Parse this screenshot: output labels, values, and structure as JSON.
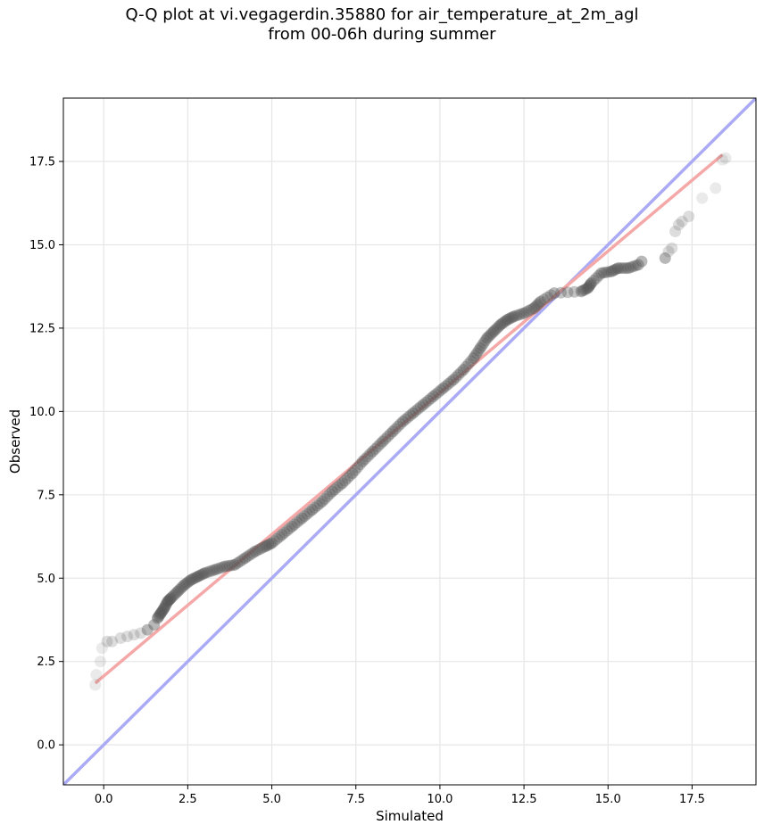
{
  "chart_data": {
    "type": "scatter",
    "title_line1": "Q-Q plot at vi.vegagerdin.35880 for air_temperature_at_2m_agl",
    "title_line2": "from 00-06h during summer",
    "xlabel": "Simulated",
    "ylabel": "Observed",
    "xlim": [
      -1.2,
      19.4
    ],
    "ylim": [
      -1.2,
      19.4
    ],
    "xticks": [
      0.0,
      2.5,
      5.0,
      7.5,
      10.0,
      12.5,
      15.0,
      17.5
    ],
    "yticks": [
      0.0,
      2.5,
      5.0,
      7.5,
      10.0,
      12.5,
      15.0,
      17.5
    ],
    "grid": true,
    "reference_line": {
      "name": "1:1",
      "color": "#aaaaf5",
      "x": [
        -1.2,
        19.4
      ],
      "y": [
        -1.2,
        19.4
      ]
    },
    "fit_line": {
      "color": "#f5a8a8",
      "x": [
        -0.25,
        18.4
      ],
      "y": [
        1.85,
        17.7
      ]
    },
    "points": {
      "color": "#555555",
      "x": [
        -0.25,
        -0.22,
        -0.1,
        -0.05,
        0.1,
        0.25,
        0.5,
        0.7,
        0.9,
        1.1,
        1.3,
        1.5,
        1.6,
        1.7,
        1.8,
        1.9,
        2.0,
        2.2,
        2.4,
        2.6,
        2.8,
        3.0,
        3.3,
        3.6,
        3.9,
        4.2,
        4.5,
        4.8,
        5.0,
        5.3,
        5.6,
        5.9,
        6.2,
        6.5,
        6.8,
        7.1,
        7.4,
        7.7,
        8.0,
        8.3,
        8.6,
        8.9,
        9.2,
        9.5,
        9.8,
        10.1,
        10.4,
        10.7,
        11.0,
        11.2,
        11.4,
        11.6,
        11.8,
        12.0,
        12.2,
        12.5,
        12.8,
        13.0,
        13.4,
        14.2,
        14.4,
        14.5,
        14.8,
        15.1,
        15.3,
        15.6,
        15.9,
        16.0,
        16.7,
        16.8,
        16.9,
        17.0,
        17.1,
        17.2,
        17.4,
        17.8,
        18.2,
        18.4,
        18.5
      ],
      "y": [
        1.8,
        2.1,
        2.5,
        2.9,
        3.1,
        3.1,
        3.2,
        3.25,
        3.3,
        3.35,
        3.45,
        3.6,
        3.8,
        3.95,
        4.1,
        4.3,
        4.4,
        4.6,
        4.8,
        4.95,
        5.05,
        5.15,
        5.25,
        5.35,
        5.4,
        5.6,
        5.8,
        5.95,
        6.05,
        6.3,
        6.55,
        6.8,
        7.05,
        7.3,
        7.6,
        7.85,
        8.15,
        8.5,
        8.8,
        9.1,
        9.4,
        9.7,
        9.95,
        10.2,
        10.45,
        10.7,
        10.95,
        11.25,
        11.6,
        11.9,
        12.2,
        12.4,
        12.6,
        12.75,
        12.85,
        12.95,
        13.1,
        13.3,
        13.55,
        13.6,
        13.7,
        13.85,
        14.15,
        14.2,
        14.3,
        14.3,
        14.4,
        14.5,
        14.6,
        14.8,
        14.9,
        15.4,
        15.6,
        15.7,
        15.85,
        16.4,
        16.7,
        17.55,
        17.6
      ]
    }
  }
}
